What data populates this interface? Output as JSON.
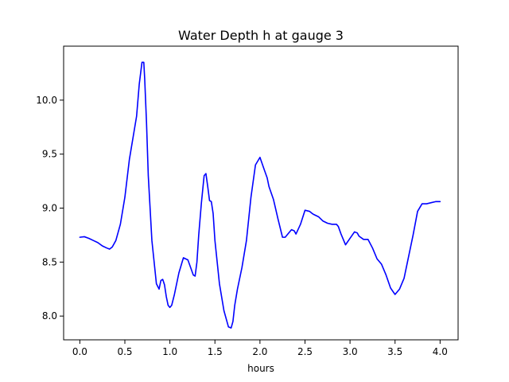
{
  "chart_data": {
    "type": "line",
    "title": "Water Depth h at gauge 3",
    "xlabel": "hours",
    "ylabel": "",
    "xlim": [
      -0.18,
      4.2
    ],
    "ylim": [
      7.78,
      10.5
    ],
    "xticks": [
      0.0,
      0.5,
      1.0,
      1.5,
      2.0,
      2.5,
      3.0,
      3.5,
      4.0
    ],
    "xtick_labels": [
      "0.0",
      "0.5",
      "1.0",
      "1.5",
      "2.0",
      "2.5",
      "3.0",
      "3.5",
      "4.0"
    ],
    "yticks": [
      8.0,
      8.5,
      9.0,
      9.5,
      10.0
    ],
    "ytick_labels": [
      "8.0",
      "8.5",
      "9.0",
      "9.5",
      "10.0"
    ],
    "grid": false,
    "series": [
      {
        "color": "#0000ff",
        "x": [
          0.0,
          0.05,
          0.1,
          0.15,
          0.2,
          0.25,
          0.3,
          0.33,
          0.36,
          0.4,
          0.45,
          0.5,
          0.55,
          0.6,
          0.63,
          0.66,
          0.69,
          0.71,
          0.72,
          0.74,
          0.76,
          0.8,
          0.85,
          0.88,
          0.9,
          0.92,
          0.94,
          0.96,
          0.98,
          1.0,
          1.02,
          1.05,
          1.1,
          1.15,
          1.2,
          1.23,
          1.26,
          1.28,
          1.3,
          1.32,
          1.35,
          1.38,
          1.4,
          1.42,
          1.44,
          1.46,
          1.48,
          1.5,
          1.55,
          1.6,
          1.65,
          1.68,
          1.7,
          1.72,
          1.75,
          1.8,
          1.85,
          1.9,
          1.95,
          2.0,
          2.05,
          2.08,
          2.1,
          2.15,
          2.2,
          2.25,
          2.28,
          2.3,
          2.35,
          2.38,
          2.4,
          2.45,
          2.5,
          2.55,
          2.58,
          2.6,
          2.65,
          2.7,
          2.75,
          2.8,
          2.85,
          2.87,
          2.9,
          2.95,
          3.0,
          3.05,
          3.08,
          3.1,
          3.15,
          3.2,
          3.25,
          3.3,
          3.35,
          3.4,
          3.45,
          3.5,
          3.55,
          3.6,
          3.65,
          3.7,
          3.75,
          3.8,
          3.85,
          3.9,
          3.95,
          4.0
        ],
        "y": [
          8.73,
          8.735,
          8.72,
          8.7,
          8.68,
          8.65,
          8.63,
          8.62,
          8.64,
          8.7,
          8.85,
          9.1,
          9.45,
          9.7,
          9.85,
          10.15,
          10.35,
          10.35,
          10.2,
          9.8,
          9.3,
          8.7,
          8.3,
          8.25,
          8.33,
          8.34,
          8.29,
          8.18,
          8.1,
          8.08,
          8.1,
          8.2,
          8.4,
          8.54,
          8.52,
          8.45,
          8.38,
          8.37,
          8.5,
          8.75,
          9.05,
          9.3,
          9.32,
          9.2,
          9.07,
          9.06,
          8.95,
          8.7,
          8.3,
          8.05,
          7.9,
          7.89,
          7.95,
          8.1,
          8.25,
          8.45,
          8.7,
          9.1,
          9.4,
          9.47,
          9.35,
          9.28,
          9.2,
          9.08,
          8.9,
          8.73,
          8.73,
          8.75,
          8.8,
          8.79,
          8.76,
          8.85,
          8.98,
          8.97,
          8.95,
          8.94,
          8.92,
          8.88,
          8.86,
          8.85,
          8.85,
          8.83,
          8.76,
          8.66,
          8.72,
          8.78,
          8.77,
          8.74,
          8.71,
          8.71,
          8.63,
          8.53,
          8.48,
          8.38,
          8.26,
          8.2,
          8.25,
          8.35,
          8.55,
          8.75,
          8.97,
          9.04,
          9.04,
          9.05,
          9.06,
          9.06
        ]
      }
    ]
  }
}
